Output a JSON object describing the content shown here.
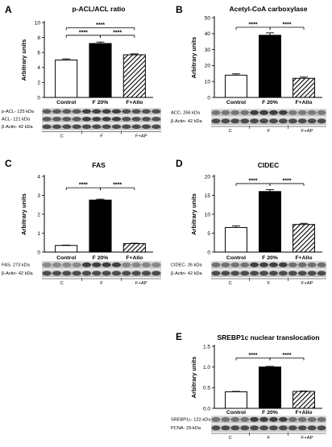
{
  "chart_data": [
    {
      "type": "bar",
      "panel": "A",
      "title": "p-ACL/ACL ratio",
      "ylabel": "Arbitrary units",
      "categories": [
        "Control",
        "F 20%",
        "F+Allo"
      ],
      "values": [
        5.0,
        7.2,
        5.7
      ],
      "errors": [
        0.15,
        0.2,
        0.12
      ],
      "patterns": [
        "white",
        "black",
        "hatch"
      ],
      "ylim": [
        0,
        10
      ],
      "yticks": [
        "0",
        "2",
        "4",
        "6",
        "8",
        "10"
      ],
      "significance": [
        {
          "from": 0,
          "to": 2,
          "label": "****",
          "level": 9.3
        },
        {
          "from": 0,
          "to": 1,
          "label": "****",
          "level": 8.3
        },
        {
          "from": 1,
          "to": 2,
          "label": "****",
          "level": 8.3
        }
      ],
      "blot_rows": [
        "p-ACL- 125 kDa",
        "ACL- 121 kDa",
        "β-Actin- 42 kDa"
      ],
      "groups": [
        "C",
        "F",
        "F+AP"
      ]
    },
    {
      "type": "bar",
      "panel": "B",
      "title": "Acetyl-CoA carboxylase",
      "ylabel": "Arbitrary units",
      "categories": [
        "Control",
        "F 20%",
        "F+Allo"
      ],
      "values": [
        14.0,
        39.0,
        12.0
      ],
      "errors": [
        0.8,
        1.5,
        0.8
      ],
      "patterns": [
        "white",
        "black",
        "hatch"
      ],
      "ylim": [
        0,
        50
      ],
      "yticks": [
        "0",
        "10",
        "20",
        "30",
        "40",
        "50"
      ],
      "significance": [
        {
          "from": 0,
          "to": 1,
          "label": "****",
          "level": 44
        },
        {
          "from": 1,
          "to": 2,
          "label": "****",
          "level": 44
        }
      ],
      "blot_rows": [
        "ACC- 266 kDa",
        "β-Actin- 42 kDa"
      ],
      "groups": [
        "C",
        "F",
        "F+AP"
      ]
    },
    {
      "type": "bar",
      "panel": "C",
      "title": "FAS",
      "ylabel": "Arbitrary units",
      "categories": [
        "Control",
        "F 20%",
        "F+Allo"
      ],
      "values": [
        0.35,
        2.75,
        0.45
      ],
      "errors": [
        0.02,
        0.05,
        0.02
      ],
      "patterns": [
        "white",
        "black",
        "hatch"
      ],
      "ylim": [
        0,
        4
      ],
      "yticks": [
        "0",
        "1",
        "2",
        "3",
        "4"
      ],
      "significance": [
        {
          "from": 0,
          "to": 1,
          "label": "****",
          "level": 3.4
        },
        {
          "from": 1,
          "to": 2,
          "label": "****",
          "level": 3.4
        }
      ],
      "blot_rows": [
        "FAS- 273 kDa",
        "β-Actin- 42 kDa"
      ],
      "groups": [
        "C",
        "F",
        "F+AP"
      ]
    },
    {
      "type": "bar",
      "panel": "D",
      "title": "CIDEC",
      "ylabel": "Arbitrary units",
      "categories": [
        "Control",
        "F 20%",
        "F+Allo"
      ],
      "values": [
        6.5,
        16.0,
        7.3
      ],
      "errors": [
        0.4,
        0.5,
        0.3
      ],
      "patterns": [
        "white",
        "black",
        "hatch"
      ],
      "ylim": [
        0,
        20
      ],
      "yticks": [
        "0",
        "5",
        "10",
        "15",
        "20"
      ],
      "significance": [
        {
          "from": 0,
          "to": 1,
          "label": "****",
          "level": 18.1
        },
        {
          "from": 1,
          "to": 2,
          "label": "****",
          "level": 18.1
        }
      ],
      "blot_rows": [
        "CIDEC- 26 kDa",
        "β-Actin- 42 kDa"
      ],
      "groups": [
        "C",
        "F",
        "F+AP"
      ]
    },
    {
      "type": "bar",
      "panel": "E",
      "title": "SREBP1c nuclear translocation",
      "ylabel": "Arbitrary units",
      "categories": [
        "Control",
        "F 20%",
        "F+Allo"
      ],
      "values": [
        0.4,
        1.0,
        0.41
      ],
      "errors": [
        0.01,
        0.015,
        0.01
      ],
      "patterns": [
        "white",
        "black",
        "hatch"
      ],
      "ylim": [
        0,
        1.5
      ],
      "yticks": [
        "0.0",
        "0.5",
        "1.0",
        "1.5"
      ],
      "significance": [
        {
          "from": 0,
          "to": 1,
          "label": "****",
          "level": 1.22
        },
        {
          "from": 1,
          "to": 2,
          "label": "****",
          "level": 1.22
        }
      ],
      "blot_rows": [
        "SREBP1c- 122-kDa",
        "PCNA- 29-kDa"
      ],
      "groups": [
        "C",
        "F",
        "F+AP"
      ]
    }
  ],
  "colors": {
    "black": "#000000",
    "white": "#ffffff",
    "blot": "#5a5a5a"
  }
}
